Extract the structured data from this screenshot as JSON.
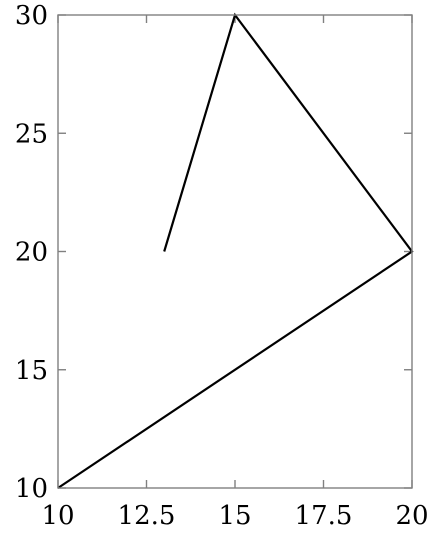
{
  "chart_data": {
    "type": "line",
    "title": "",
    "xlabel": "",
    "ylabel": "",
    "xlim": [
      10,
      20
    ],
    "ylim": [
      10,
      30
    ],
    "x_ticks": [
      10,
      12.5,
      15,
      17.5,
      20
    ],
    "x_tick_labels": [
      "10",
      "12.5",
      "15",
      "17.5",
      "20"
    ],
    "y_ticks": [
      10,
      15,
      20,
      25,
      30
    ],
    "y_tick_labels": [
      "10",
      "15",
      "20",
      "25",
      "30"
    ],
    "grid": false,
    "legend": "none",
    "series": [
      {
        "x": [
          10,
          20,
          15,
          13
        ],
        "y": [
          10,
          20,
          30,
          20
        ],
        "color": "#000000"
      }
    ],
    "frame_color": "#808080"
  }
}
